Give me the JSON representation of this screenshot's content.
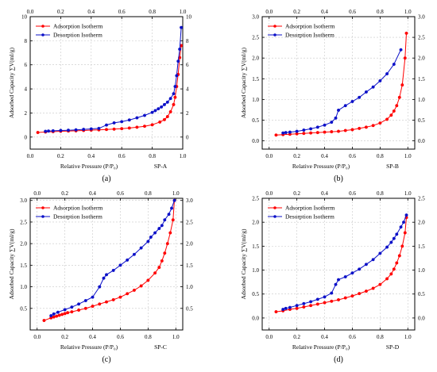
{
  "figure": {
    "series_names": [
      "Adsorption Isotherm",
      "Desorption Isotherm"
    ],
    "colors": {
      "adsorption": "#ff0000",
      "desorption": "#0b10c8"
    }
  },
  "chart_data": [
    {
      "type": "line",
      "sample": "SP-A",
      "caption": "(a)",
      "xlabel": "Relative Pressure (P/P₀)",
      "ylabel": "Adsorbed Capacity ∑V(ml/g)",
      "xlim": [
        0,
        1
      ],
      "ylim": [
        -1,
        10
      ],
      "x_ticks": [
        "0.0",
        "0.2",
        "0.4",
        "0.6",
        "0.8",
        "1.0"
      ],
      "y_ticks": [
        "0",
        "2",
        "4",
        "6",
        "8",
        "10"
      ],
      "y_tick_values": [
        0,
        2,
        4,
        6,
        8,
        10
      ],
      "grid": true,
      "legend": "top-left",
      "series": [
        {
          "name": "Adsorption Isotherm",
          "x": [
            0.05,
            0.1,
            0.15,
            0.2,
            0.25,
            0.3,
            0.35,
            0.4,
            0.45,
            0.5,
            0.55,
            0.6,
            0.65,
            0.7,
            0.75,
            0.8,
            0.85,
            0.88,
            0.9,
            0.92,
            0.94,
            0.95,
            0.96,
            0.97,
            0.98,
            0.99
          ],
          "y": [
            0.38,
            0.42,
            0.45,
            0.48,
            0.5,
            0.52,
            0.55,
            0.58,
            0.6,
            0.63,
            0.66,
            0.7,
            0.75,
            0.82,
            0.9,
            1.02,
            1.25,
            1.45,
            1.7,
            2.1,
            2.7,
            3.3,
            4.2,
            5.2,
            6.6,
            7.6
          ]
        },
        {
          "name": "Desorption Isotherm",
          "x": [
            0.99,
            0.98,
            0.97,
            0.96,
            0.95,
            0.94,
            0.92,
            0.9,
            0.88,
            0.86,
            0.84,
            0.82,
            0.8,
            0.75,
            0.7,
            0.65,
            0.6,
            0.55,
            0.5,
            0.45,
            0.4,
            0.35,
            0.3,
            0.25,
            0.2,
            0.15,
            0.12,
            0.1
          ],
          "y": [
            9.1,
            7.3,
            6.3,
            5.1,
            4.2,
            3.6,
            3.2,
            2.9,
            2.7,
            2.5,
            2.35,
            2.2,
            2.05,
            1.8,
            1.6,
            1.42,
            1.28,
            1.18,
            1.0,
            0.72,
            0.68,
            0.64,
            0.6,
            0.57,
            0.55,
            0.52,
            0.5,
            0.48
          ]
        }
      ]
    },
    {
      "type": "line",
      "sample": "SP-B",
      "caption": "(b)",
      "xlabel": "Relative Pressure (P/P₀)",
      "ylabel": "Adsorbed Capacity ∑V(ml/g)",
      "xlim": [
        -0.05,
        1.05
      ],
      "ylim": [
        -0.2,
        3.0
      ],
      "x_ticks": [
        "0.0",
        "0.2",
        "0.4",
        "0.6",
        "0.8",
        "1.0"
      ],
      "y_ticks": [
        "0.0",
        "0.5",
        "1.0",
        "1.5",
        "2.0",
        "2.5",
        "3.0"
      ],
      "y_tick_values": [
        0,
        0.5,
        1,
        1.5,
        2,
        2.5,
        3
      ],
      "grid": true,
      "legend": "top-left",
      "series": [
        {
          "name": "Adsorption Isotherm",
          "x": [
            0.05,
            0.1,
            0.15,
            0.2,
            0.25,
            0.3,
            0.35,
            0.4,
            0.45,
            0.5,
            0.55,
            0.6,
            0.65,
            0.7,
            0.75,
            0.8,
            0.85,
            0.88,
            0.9,
            0.92,
            0.94,
            0.96,
            0.98,
            0.99
          ],
          "y": [
            0.14,
            0.15,
            0.16,
            0.17,
            0.18,
            0.19,
            0.2,
            0.21,
            0.22,
            0.23,
            0.25,
            0.27,
            0.3,
            0.33,
            0.37,
            0.43,
            0.52,
            0.62,
            0.72,
            0.85,
            1.05,
            1.35,
            2.0,
            2.6
          ]
        },
        {
          "name": "Desorption Isotherm",
          "x": [
            0.95,
            0.9,
            0.85,
            0.8,
            0.75,
            0.7,
            0.65,
            0.6,
            0.55,
            0.5,
            0.48,
            0.45,
            0.4,
            0.35,
            0.3,
            0.25,
            0.2,
            0.15,
            0.12,
            0.1
          ],
          "y": [
            2.2,
            1.85,
            1.62,
            1.45,
            1.3,
            1.18,
            1.05,
            0.95,
            0.85,
            0.74,
            0.55,
            0.45,
            0.38,
            0.33,
            0.29,
            0.26,
            0.23,
            0.21,
            0.2,
            0.19
          ]
        }
      ]
    },
    {
      "type": "line",
      "sample": "SP-C",
      "caption": "(c)",
      "xlabel": "Relative Pressure (P/P₀)",
      "ylabel": "Adsorbed Capacity ∑V(ml/g)",
      "xlim": [
        -0.05,
        1.05
      ],
      "ylim": [
        0,
        3.05
      ],
      "x_ticks": [
        "0.0",
        "0.2",
        "0.4",
        "0.6",
        "0.8",
        "1.0"
      ],
      "y_ticks": [
        "0.5",
        "1.0",
        "1.5",
        "2.0",
        "2.5",
        "3.0"
      ],
      "y_tick_values": [
        0.5,
        1,
        1.5,
        2,
        2.5,
        3
      ],
      "grid": true,
      "legend": "top-left",
      "series": [
        {
          "name": "Adsorption Isotherm",
          "x": [
            0.05,
            0.1,
            0.12,
            0.14,
            0.16,
            0.18,
            0.2,
            0.22,
            0.25,
            0.3,
            0.35,
            0.4,
            0.45,
            0.5,
            0.55,
            0.6,
            0.65,
            0.7,
            0.75,
            0.8,
            0.85,
            0.88,
            0.9,
            0.92,
            0.94,
            0.96,
            0.98,
            0.99
          ],
          "y": [
            0.22,
            0.28,
            0.3,
            0.32,
            0.34,
            0.36,
            0.38,
            0.4,
            0.42,
            0.46,
            0.5,
            0.55,
            0.6,
            0.65,
            0.7,
            0.76,
            0.84,
            0.92,
            1.02,
            1.15,
            1.32,
            1.45,
            1.6,
            1.78,
            2.0,
            2.25,
            2.55,
            3.0
          ]
        },
        {
          "name": "Desorption Isotherm",
          "x": [
            0.99,
            0.97,
            0.95,
            0.92,
            0.9,
            0.88,
            0.85,
            0.82,
            0.8,
            0.75,
            0.7,
            0.65,
            0.6,
            0.55,
            0.5,
            0.48,
            0.45,
            0.4,
            0.35,
            0.3,
            0.25,
            0.2,
            0.15,
            0.12,
            0.1
          ],
          "y": [
            3.0,
            2.82,
            2.68,
            2.55,
            2.42,
            2.35,
            2.25,
            2.15,
            2.05,
            1.9,
            1.75,
            1.62,
            1.5,
            1.38,
            1.28,
            1.2,
            1.0,
            0.76,
            0.68,
            0.6,
            0.53,
            0.47,
            0.41,
            0.37,
            0.33
          ]
        }
      ]
    },
    {
      "type": "line",
      "sample": "SP-D",
      "caption": "(d)",
      "xlabel": "Relative Pressure (P/P₀)",
      "ylabel": "Adsorbed Capacity ∑V(ml/g)",
      "xlim": [
        -0.05,
        1.05
      ],
      "ylim": [
        -0.25,
        2.5
      ],
      "x_ticks": [
        "0.0",
        "0.2",
        "0.4",
        "0.6",
        "0.8",
        "1.0"
      ],
      "y_ticks": [
        "0.0",
        "0.5",
        "1.0",
        "1.5",
        "2.0",
        "2.5"
      ],
      "y_tick_values": [
        0,
        0.5,
        1,
        1.5,
        2,
        2.5
      ],
      "grid": true,
      "legend": "top-left",
      "series": [
        {
          "name": "Adsorption Isotherm",
          "x": [
            0.05,
            0.1,
            0.15,
            0.2,
            0.25,
            0.3,
            0.35,
            0.4,
            0.45,
            0.5,
            0.55,
            0.6,
            0.65,
            0.7,
            0.75,
            0.8,
            0.85,
            0.88,
            0.9,
            0.92,
            0.94,
            0.96,
            0.98,
            0.99
          ],
          "y": [
            0.13,
            0.15,
            0.18,
            0.2,
            0.23,
            0.26,
            0.29,
            0.32,
            0.35,
            0.38,
            0.42,
            0.46,
            0.51,
            0.56,
            0.62,
            0.7,
            0.82,
            0.92,
            1.02,
            1.15,
            1.3,
            1.5,
            1.78,
            2.1
          ]
        },
        {
          "name": "Desorption Isotherm",
          "x": [
            0.99,
            0.97,
            0.95,
            0.92,
            0.9,
            0.88,
            0.85,
            0.8,
            0.75,
            0.7,
            0.65,
            0.6,
            0.55,
            0.5,
            0.48,
            0.45,
            0.4,
            0.35,
            0.3,
            0.25,
            0.2,
            0.15,
            0.12,
            0.1
          ],
          "y": [
            2.15,
            2.0,
            1.9,
            1.75,
            1.66,
            1.58,
            1.48,
            1.35,
            1.22,
            1.12,
            1.02,
            0.94,
            0.86,
            0.8,
            0.7,
            0.52,
            0.44,
            0.39,
            0.34,
            0.3,
            0.26,
            0.22,
            0.2,
            0.18
          ]
        }
      ]
    }
  ]
}
